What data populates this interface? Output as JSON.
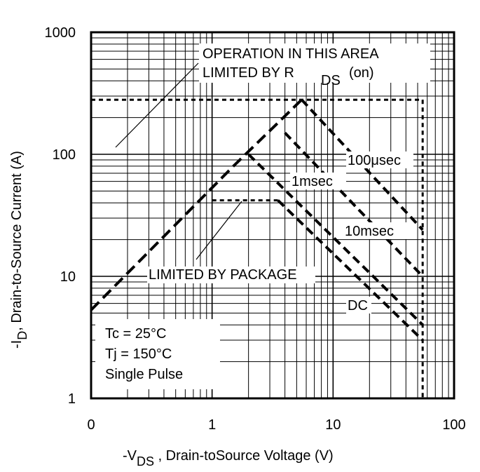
{
  "chart_data": {
    "type": "line",
    "x_scale": "log",
    "y_scale": "log",
    "xlim": [
      0.1,
      100
    ],
    "ylim": [
      1,
      1000
    ],
    "grid": true,
    "x_tick_labels": [
      {
        "value": 0.1,
        "label": "0"
      },
      {
        "value": 1,
        "label": "1"
      },
      {
        "value": 10,
        "label": "10"
      },
      {
        "value": 100,
        "label": "100"
      }
    ],
    "y_tick_labels": [
      {
        "value": 1,
        "label": "1"
      },
      {
        "value": 10,
        "label": "10"
      },
      {
        "value": 100,
        "label": "100"
      },
      {
        "value": 1000,
        "label": "1000"
      }
    ],
    "xlabel": {
      "prefix": "-V",
      "sub": "DS",
      "suffix": " , Drain-toSource Voltage (V)"
    },
    "ylabel": {
      "prefix": "-I",
      "sub": "D",
      "suffix": ",  Drain-to-Source Current (A)"
    },
    "annotations": {
      "rds_line1": "OPERATION IN THIS AREA",
      "rds_line2": "LIMITED BY R",
      "rds_sub": "DS",
      "rds_on": "(on)",
      "package": "LIMITED BY PACKAGE",
      "conditions": [
        "Tc = 25°C",
        "Tj = 150°C",
        "Single Pulse"
      ]
    },
    "series": [
      {
        "name": "100μsec",
        "points": [
          [
            5.5,
            280
          ],
          [
            55,
            24
          ]
        ]
      },
      {
        "name": "1msec",
        "points": [
          [
            4.0,
            150
          ],
          [
            55,
            10
          ]
        ]
      },
      {
        "name": "10msec",
        "points": [
          [
            2.0,
            100
          ],
          [
            55,
            4
          ]
        ]
      },
      {
        "name": "DC",
        "points": [
          [
            3.5,
            42
          ],
          [
            55,
            3
          ]
        ]
      }
    ],
    "rds_on_limit": {
      "points": [
        [
          0.1,
          5.3
        ],
        [
          1.5,
          80
        ],
        [
          5.5,
          280
        ]
      ]
    },
    "package_limit": {
      "points": [
        [
          1.0,
          42
        ],
        [
          3.5,
          42
        ]
      ]
    },
    "current_limit": {
      "value": 280,
      "x_range": [
        0.1,
        55
      ]
    },
    "voltage_limit": {
      "value": 55,
      "y_range": [
        1,
        280
      ]
    }
  }
}
